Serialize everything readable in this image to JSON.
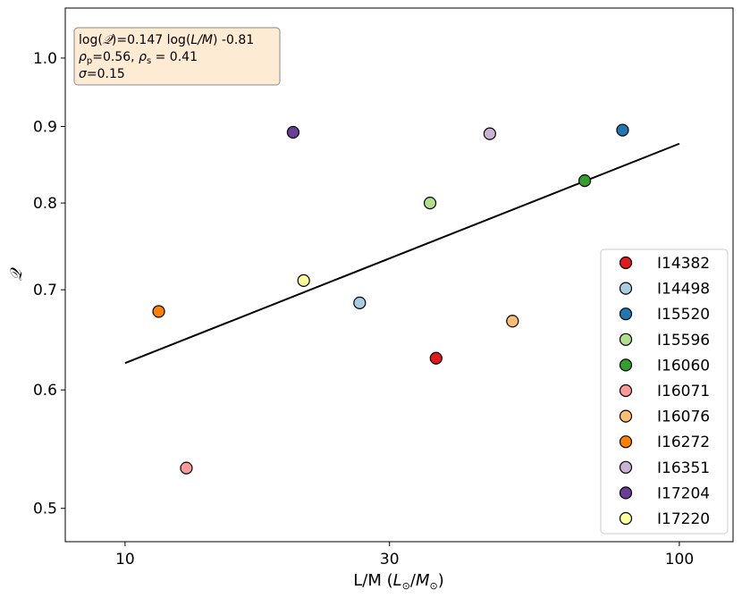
{
  "chart_data": {
    "type": "scatter",
    "xlabel": "L/M (L⊙/M⊙)",
    "xlabel_parts": {
      "prefix": "L/M (",
      "l": "L",
      "sep": "/",
      "m": "M",
      "sun": "⊙",
      "suffix": ")"
    },
    "ylabel": "𝒬",
    "xscale": "log",
    "yscale": "log",
    "xlim": [
      7.8,
      125
    ],
    "ylim": [
      0.475,
      1.08
    ],
    "xticks": [
      10,
      30,
      100
    ],
    "xtick_labels": [
      "10",
      "30",
      "100"
    ],
    "yticks": [
      0.5,
      0.6,
      0.7,
      0.8,
      0.9,
      1.0
    ],
    "ytick_labels": [
      "0.5",
      "0.6",
      "0.7",
      "0.8",
      "0.9",
      "1.0"
    ],
    "grid": false,
    "legend_position": "lower-right",
    "series": [
      {
        "name": "I14382",
        "color": "#e31a1c",
        "x": 36.4,
        "y": 0.63
      },
      {
        "name": "I14498",
        "color": "#a6cee3",
        "x": 26.5,
        "y": 0.686
      },
      {
        "name": "I15520",
        "color": "#1f78b4",
        "x": 79.0,
        "y": 0.895
      },
      {
        "name": "I15596",
        "color": "#b2df8a",
        "x": 35.5,
        "y": 0.8
      },
      {
        "name": "I16060",
        "color": "#33a02c",
        "x": 67.5,
        "y": 0.828
      },
      {
        "name": "I16071",
        "color": "#fb9a99",
        "x": 12.9,
        "y": 0.532
      },
      {
        "name": "I16076",
        "color": "#fdbf6f",
        "x": 50.0,
        "y": 0.667
      },
      {
        "name": "I16272",
        "color": "#ff7f00",
        "x": 11.5,
        "y": 0.677
      },
      {
        "name": "I16351",
        "color": "#cab2d6",
        "x": 45.5,
        "y": 0.89
      },
      {
        "name": "I17204",
        "color": "#6a3d9a",
        "x": 20.1,
        "y": 0.892
      },
      {
        "name": "I17220",
        "color": "#ffff99",
        "x": 21.0,
        "y": 0.71
      }
    ],
    "fit_line": {
      "x": [
        10,
        100
      ],
      "y": [
        0.6253,
        0.8765
      ],
      "color": "#000000"
    },
    "annotation": {
      "lines": [
        "log(𝒬)=0.147 log(L/M) -0.81",
        "ρp=0.56, ρs = 0.41",
        "σ=0.15"
      ],
      "line1": {
        "a": "log(",
        "q": "𝒬",
        "b": ")=0.147 log(",
        "lm": "L/M",
        "c": ") -0.81"
      },
      "line2": {
        "rho": "ρ",
        "p": "p",
        "mid": "=0.56, ",
        "rho2": "ρ",
        "s": "s",
        "end": " = 0.41"
      },
      "line3": {
        "sigma": "σ",
        "rest": "=0.15"
      },
      "box_fill": "#fdebd3",
      "box_edge": "#8a8a8a"
    }
  }
}
